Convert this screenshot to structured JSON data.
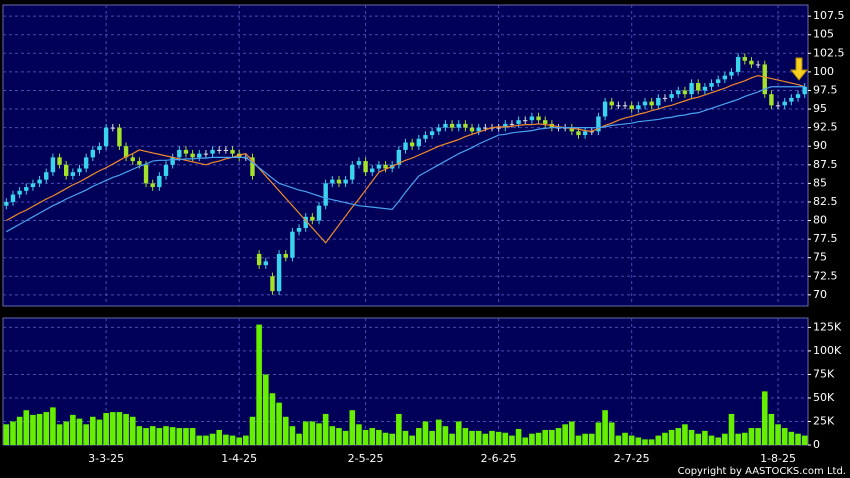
{
  "chart_data": [
    {
      "type": "candlestick",
      "open": [
        82,
        82.5,
        83.5,
        84,
        84.5,
        85,
        85.5,
        86.5,
        88.5,
        87.5,
        86,
        86.5,
        87,
        88.5,
        89.5,
        90,
        92.5,
        92.5,
        90,
        88.5,
        88,
        87.5,
        85,
        84.5,
        86,
        87.5,
        88.5,
        89.5,
        89,
        88.5,
        89,
        89,
        89.5,
        89.5,
        89.5,
        89,
        88.5,
        88.5,
        75.5,
        74,
        72.5,
        70.5,
        75.5,
        75,
        78.5,
        79,
        80.5,
        80,
        82,
        85,
        85.5,
        85,
        85.5,
        87.5,
        88,
        86.5,
        87,
        87.5,
        87,
        87.5,
        89.5,
        90.5,
        90,
        91,
        91.5,
        92,
        92.5,
        93,
        92.5,
        93,
        92.5,
        92,
        92.5,
        92.5,
        92.5,
        92.5,
        93,
        93,
        93.5,
        93.5,
        94,
        93.5,
        93,
        92.5,
        92.5,
        92.5,
        92,
        91.5,
        92,
        92,
        94,
        96,
        95.5,
        95.5,
        95.5,
        95,
        95.5,
        96,
        95.5,
        96.5,
        96.5,
        97,
        97.5,
        97,
        98.5,
        97.5,
        98,
        98.5,
        99,
        99.5,
        100,
        102,
        101.5,
        101,
        101,
        97,
        95.5,
        95.5,
        96,
        96.5,
        97
      ],
      "high": [
        83,
        84,
        84.5,
        85,
        85.5,
        86,
        87,
        89,
        89,
        88,
        87,
        87.5,
        89,
        90,
        90.5,
        93,
        93,
        93,
        90.5,
        89,
        88.5,
        88,
        85.5,
        86.5,
        88,
        89,
        90,
        90,
        89.5,
        89.5,
        89.5,
        90,
        90,
        90,
        90,
        89.5,
        89,
        89,
        76,
        75,
        73,
        76,
        76,
        79,
        79.5,
        81,
        81,
        82.5,
        85.5,
        86,
        86,
        86,
        88,
        88.5,
        88.5,
        87.5,
        88,
        88,
        88,
        90,
        91,
        91,
        91.5,
        92,
        92.5,
        93,
        93.5,
        93.5,
        93.5,
        93.5,
        93,
        93,
        93,
        93,
        93,
        93.5,
        93.5,
        94,
        94,
        94.5,
        94.5,
        94,
        93.5,
        93,
        93,
        93,
        92.5,
        92.5,
        92.5,
        94.5,
        96.5,
        96.5,
        96,
        96,
        96,
        96,
        96.5,
        96.5,
        97,
        97,
        97.5,
        98,
        98,
        99,
        99,
        98.5,
        99,
        99.5,
        100,
        100.5,
        102.5,
        102.5,
        102,
        101.5,
        101.5,
        97.5,
        96,
        96.5,
        97,
        97.5,
        98.5
      ],
      "low": [
        81.5,
        82,
        83,
        83.5,
        84,
        84.5,
        85,
        86,
        87,
        85.5,
        85.5,
        86,
        86.5,
        88,
        89,
        89.5,
        92,
        89.5,
        88,
        87.5,
        87,
        84.5,
        84,
        84,
        85.5,
        87,
        88,
        88.5,
        88,
        88,
        88.5,
        88.5,
        89,
        89,
        88.5,
        88,
        88,
        85.5,
        73.5,
        73.5,
        70,
        70,
        74.5,
        74.5,
        78,
        78.5,
        79.5,
        79.5,
        81.5,
        84.5,
        84.5,
        84.5,
        85,
        87,
        86,
        86,
        86.5,
        86.5,
        86.5,
        87,
        89,
        89.5,
        89.5,
        90.5,
        91,
        91.5,
        92,
        92,
        92,
        92,
        91.5,
        91.5,
        92,
        92,
        92,
        92,
        92.5,
        92.5,
        93,
        93,
        93,
        92.5,
        92,
        92,
        92,
        91.5,
        91,
        91,
        91.5,
        91.5,
        93.5,
        95,
        95,
        95,
        94.5,
        94.5,
        95,
        95,
        95,
        96,
        96,
        96.5,
        96.5,
        96.5,
        97,
        97,
        97.5,
        98,
        98.5,
        99,
        99.5,
        101,
        100.5,
        100.5,
        96.5,
        95,
        95,
        95,
        95.5,
        96,
        96.5
      ],
      "close": [
        82.5,
        83.5,
        84,
        84.5,
        85,
        85.5,
        86.5,
        88.5,
        87.5,
        86,
        86.5,
        87,
        88.5,
        89.5,
        90,
        92.5,
        92.5,
        90,
        88.5,
        88,
        87.5,
        85,
        84.5,
        86,
        87.5,
        88.5,
        89.5,
        89,
        88.5,
        89,
        89,
        89.5,
        89.5,
        89.5,
        89,
        88.5,
        88.5,
        86,
        74,
        74.5,
        70.5,
        75.5,
        75,
        78.5,
        79,
        80.5,
        80,
        82,
        85,
        85.5,
        85,
        85.5,
        87.5,
        88,
        86.5,
        87,
        87.5,
        87,
        87.5,
        89.5,
        90.5,
        90,
        91,
        91.5,
        92,
        92.5,
        93,
        92.5,
        93,
        92.5,
        92,
        92.5,
        92.5,
        92.5,
        92.5,
        93,
        93,
        93.5,
        93.5,
        94,
        93.5,
        93,
        92.5,
        92.5,
        92.5,
        92,
        91.5,
        92,
        92,
        94,
        96,
        95.5,
        95.5,
        95.5,
        95,
        95.5,
        96,
        95.5,
        96.5,
        96.5,
        97,
        97.5,
        97,
        98.5,
        97.5,
        98,
        98.5,
        99,
        99.5,
        100,
        102,
        101.5,
        101,
        101,
        97,
        95.5,
        95.5,
        96,
        96.5,
        97,
        98
      ],
      "up_color": "#3ad4ec",
      "down_color": "#a4e12a",
      "flat_color": "#e0e0e0",
      "series": [
        {
          "color": "#f08a2c",
          "values": [
            80,
            80.5,
            81,
            81.4,
            81.9,
            82.4,
            82.9,
            83.3,
            83.8,
            84.3,
            84.8,
            85.2,
            85.7,
            86.2,
            86.7,
            87.1,
            87.6,
            88.1,
            88.6,
            89,
            89.5,
            89.3,
            89.1,
            88.9,
            88.7,
            88.5,
            88.3,
            88.1,
            87.9,
            87.7,
            87.5,
            87.8,
            88,
            88.3,
            88.5,
            88.8,
            89,
            88,
            87,
            86,
            85,
            84,
            83,
            82,
            81,
            80,
            79,
            78,
            77,
            78.2,
            79.4,
            80.6,
            81.8,
            82.9,
            84.1,
            85.3,
            86.5,
            86.9,
            87.3,
            87.7,
            88.1,
            88.4,
            88.8,
            89.2,
            89.6,
            90,
            90.3,
            90.6,
            90.9,
            91.3,
            91.6,
            91.9,
            92.2,
            92.5,
            92.6,
            92.6,
            92.7,
            92.8,
            92.9,
            92.9,
            93,
            92.9,
            92.8,
            92.6,
            92.5,
            92.4,
            92.3,
            92.1,
            92,
            92.4,
            92.8,
            93.1,
            93.5,
            93.8,
            94,
            94.3,
            94.5,
            94.8,
            95,
            95.3,
            95.5,
            95.8,
            96.1,
            96.4,
            96.6,
            96.9,
            97.2,
            97.5,
            97.8,
            98.2,
            98.5,
            98.8,
            99.2,
            99.5,
            99.3,
            99.1,
            98.9,
            98.7,
            98.5,
            98.3,
            98
          ]
        },
        {
          "color": "#4aa3f0",
          "values": [
            78.5,
            79,
            79.5,
            80,
            80.5,
            81,
            81.5,
            82,
            82.4,
            82.9,
            83.3,
            83.7,
            84.1,
            84.6,
            85,
            85.4,
            85.8,
            86.1,
            86.5,
            86.9,
            87.3,
            87.6,
            88,
            88.1,
            88.1,
            88.2,
            88.2,
            88.3,
            88.3,
            88.4,
            88.4,
            88.5,
            88.5,
            88.5,
            88.5,
            88.5,
            88.5,
            87.8,
            87.1,
            86.4,
            85.7,
            85,
            84.7,
            84.4,
            84.1,
            83.9,
            83.6,
            83.3,
            83,
            82.8,
            82.6,
            82.4,
            82.2,
            82,
            81.9,
            81.8,
            81.7,
            81.6,
            81.5,
            82.6,
            83.8,
            84.9,
            86,
            86.5,
            87,
            87.5,
            88,
            88.5,
            89,
            89.4,
            89.8,
            90.3,
            90.7,
            91.1,
            91.5,
            91.6,
            91.8,
            91.9,
            92,
            92.1,
            92.3,
            92.4,
            92.5,
            92.5,
            92.5,
            92.5,
            92.5,
            92.5,
            92.5,
            92.5,
            92.6,
            92.8,
            92.9,
            93,
            93.1,
            93.3,
            93.4,
            93.5,
            93.6,
            93.8,
            93.9,
            94.1,
            94.2,
            94.4,
            94.5,
            94.8,
            95.1,
            95.4,
            95.7,
            96,
            96.3,
            96.7,
            97,
            97.3,
            97.7,
            98,
            98,
            98,
            98,
            98,
            98
          ]
        }
      ],
      "ylim": [
        68.5,
        109
      ],
      "yticks": [
        70,
        72.5,
        75,
        77.5,
        80,
        82.5,
        85,
        87.5,
        90,
        92.5,
        95,
        97.5,
        100,
        102.5,
        105,
        107.5
      ],
      "grid": true
    },
    {
      "type": "bar",
      "categories": [
        null,
        null,
        null,
        null,
        null,
        null,
        null,
        null,
        null,
        null,
        null,
        null,
        null,
        null,
        null,
        "3-3-25",
        null,
        null,
        null,
        null,
        null,
        null,
        null,
        null,
        null,
        null,
        null,
        null,
        null,
        null,
        null,
        null,
        null,
        null,
        null,
        "1-4-25",
        null,
        null,
        null,
        null,
        null,
        null,
        null,
        null,
        null,
        null,
        null,
        null,
        null,
        null,
        null,
        null,
        null,
        null,
        "2-5-25",
        null,
        null,
        null,
        null,
        null,
        null,
        null,
        null,
        null,
        null,
        null,
        null,
        null,
        null,
        null,
        null,
        null,
        null,
        null,
        "2-6-25",
        null,
        null,
        null,
        null,
        null,
        null,
        null,
        null,
        null,
        null,
        null,
        null,
        null,
        null,
        null,
        null,
        null,
        null,
        null,
        "2-7-25",
        null,
        null,
        null,
        null,
        null,
        null,
        null,
        null,
        null,
        null,
        null,
        null,
        null,
        null,
        null,
        null,
        null,
        null,
        null,
        null,
        null,
        "1-8-25",
        null,
        null,
        null,
        null
      ],
      "values": [
        22000,
        25000,
        30000,
        37000,
        32000,
        33000,
        35000,
        40000,
        22000,
        25000,
        32000,
        28000,
        22000,
        30000,
        27000,
        34000,
        35000,
        35000,
        33000,
        30000,
        20000,
        18000,
        20000,
        18000,
        20000,
        19000,
        18000,
        18000,
        18000,
        10000,
        10000,
        12000,
        16000,
        11000,
        10000,
        8000,
        10000,
        30000,
        128000,
        75000,
        55000,
        45000,
        30000,
        20000,
        12000,
        25000,
        25000,
        23000,
        33000,
        20000,
        18000,
        15000,
        37000,
        22000,
        16000,
        18000,
        16000,
        13000,
        12000,
        33000,
        15000,
        10000,
        18000,
        25000,
        15000,
        27000,
        20000,
        12000,
        25000,
        18000,
        15000,
        15000,
        12000,
        15000,
        14000,
        13000,
        10000,
        17000,
        8000,
        12000,
        13000,
        16000,
        16000,
        18000,
        22000,
        25000,
        10000,
        12000,
        12000,
        24000,
        37000,
        24000,
        10000,
        13000,
        10000,
        8000,
        6000,
        6000,
        10000,
        13000,
        16000,
        18000,
        22000,
        16000,
        12000,
        15000,
        10000,
        8000,
        12000,
        33000,
        12000,
        13000,
        18000,
        18000,
        57000,
        33000,
        22000,
        18000,
        14000,
        12000,
        10000
      ],
      "color": "#66f000",
      "ylim": [
        0,
        135000
      ],
      "yticks": [
        {
          "value": 0,
          "label": "0"
        },
        {
          "value": 25000,
          "label": "25K"
        },
        {
          "value": 50000,
          "label": "50K"
        },
        {
          "value": 75000,
          "label": "75K"
        },
        {
          "value": 100000,
          "label": "100K"
        },
        {
          "value": 125000,
          "label": "125K"
        }
      ],
      "grid": true,
      "copyright": "Copyright by AASTOCKS.com Ltd."
    }
  ]
}
